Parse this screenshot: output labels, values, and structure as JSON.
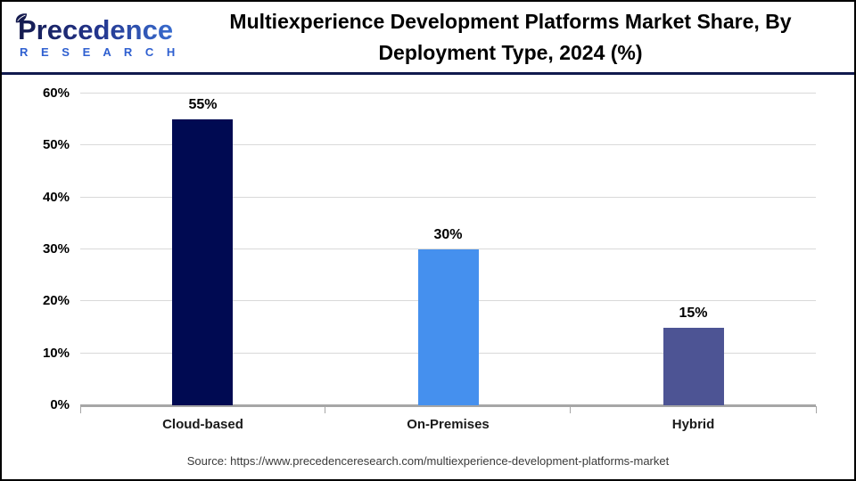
{
  "header": {
    "logo": {
      "name": "Precedence",
      "subtitle": "R E S E A R C H"
    },
    "title_line1": "Multiexperience Development Platforms Market Share, By",
    "title_line2": "Deployment Type, 2024 (%)"
  },
  "chart_data": {
    "type": "bar",
    "title": "Multiexperience Development Platforms Market Share, By Deployment Type, 2024 (%)",
    "categories": [
      "Cloud-based",
      "On-Premises",
      "Hybrid"
    ],
    "values": [
      55,
      30,
      15
    ],
    "value_labels": [
      "55%",
      "30%",
      "15%"
    ],
    "bar_colors": [
      "#000a52",
      "#4590ee",
      "#4d5494"
    ],
    "xlabel": "",
    "ylabel": "",
    "ylim": [
      0,
      60
    ],
    "ytick_values": [
      0,
      10,
      20,
      30,
      40,
      50,
      60
    ],
    "ytick_labels": [
      "0%",
      "10%",
      "20%",
      "30%",
      "40%",
      "50%",
      "60%"
    ],
    "grid": true,
    "gridline_color": "#d9d9d9",
    "axis_color": "#a6a6a6",
    "legend_position": "none"
  },
  "footer": {
    "source": "Source: https://www.precedenceresearch.com/multiexperience-development-platforms-market"
  },
  "colors": {
    "accent_divider": "#111a4e",
    "logo_navy": "#141a4e",
    "logo_blue": "#2e5fd0",
    "title_text": "#000000",
    "source_text": "#3a3a3a"
  }
}
